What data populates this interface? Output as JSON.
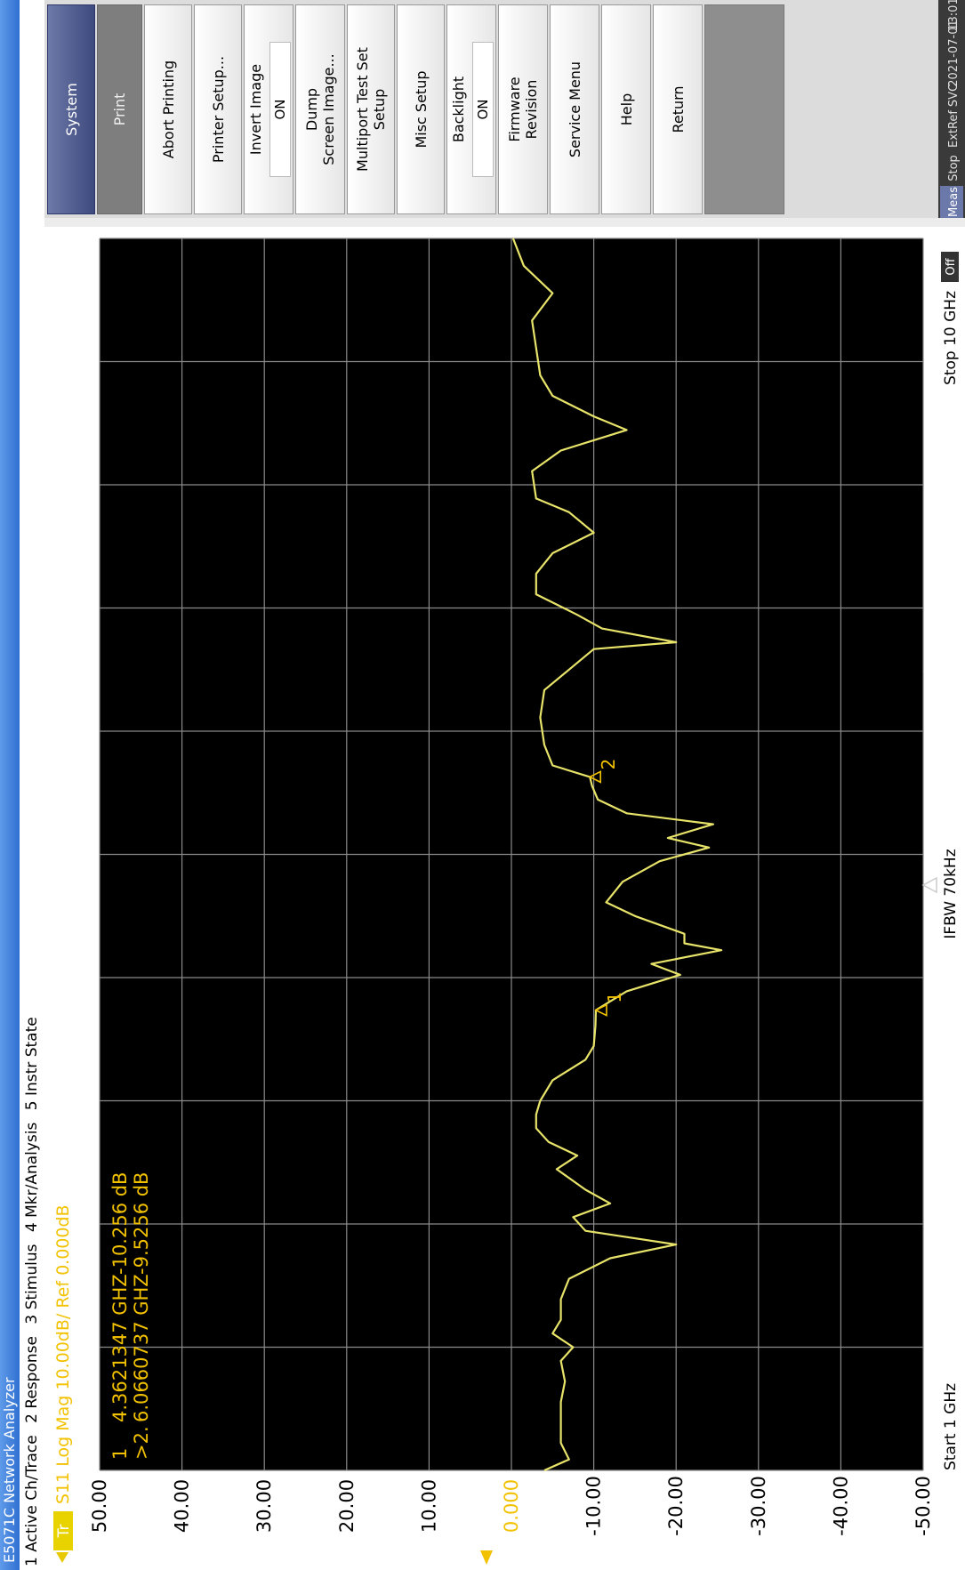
{
  "window": {
    "title": "E5071C Network Analyzer"
  },
  "menu": {
    "items": [
      "1 Active Ch/Trace",
      "2 Response",
      "3 Stimulus",
      "4 Mkr/Analysis",
      "5 Instr State"
    ]
  },
  "trace_header": {
    "tag": "Tr",
    "text": "S11 Log Mag 10.00dB/ Ref 0.000dB"
  },
  "markers_table": [
    {
      "label": "1",
      "freq": "4.3621347 GHZ",
      "value": "-10.256 dB"
    },
    {
      "label": ">2.",
      "freq": "6.0660737 GHZ",
      "value": "-9.5256 dB"
    }
  ],
  "footer": {
    "start": "Start 1 GHz",
    "ifbw": "IFBW 70kHz",
    "stop": "Stop 10 GHz",
    "off_badge": "Off"
  },
  "softkeys": {
    "system": "System",
    "print": "Print",
    "abort_printing": "Abort Printing",
    "printer_setup": "Printer Setup...",
    "invert_image": {
      "label": "Invert Image",
      "value": "ON"
    },
    "dump_screen": {
      "line1": "Dump",
      "line2": "Screen Image..."
    },
    "multiport": {
      "line1": "Multiport Test Set",
      "line2": "Setup"
    },
    "misc_setup": "Misc Setup",
    "backlight": {
      "label": "Backlight",
      "value": "ON"
    },
    "firmware": {
      "line1": "Firmware",
      "line2": "Revision"
    },
    "service_menu": "Service Menu",
    "help": "Help",
    "return": "Return"
  },
  "status": {
    "items": [
      "Meas",
      "Stop",
      "ExtRef",
      "SVC",
      "2021-07-01",
      "13:01"
    ]
  },
  "colors": {
    "trace": "#e8e46a",
    "text_yellow": "#f2c200",
    "grid": "#8a8a8a",
    "background": "#000000",
    "system_key": "#4f5a8c"
  },
  "chart_data": {
    "type": "line",
    "title": "S11 Log Mag 10.00dB/ Ref 0.000dB",
    "xlabel": "",
    "ylabel": "",
    "x_unit": "GHz",
    "xlim": [
      1,
      10
    ],
    "ylim": [
      -50,
      50
    ],
    "y_ticks": [
      "50.00",
      "40.00",
      "30.00",
      "20.00",
      "10.00",
      "0.000",
      "-10.00",
      "-20.00",
      "-30.00",
      "-40.00",
      "-50.00"
    ],
    "grid": true,
    "series": [
      {
        "x": [
          1.0,
          1.08,
          1.2,
          1.35,
          1.5,
          1.65,
          1.8,
          1.9,
          2.0,
          2.1,
          2.25,
          2.4,
          2.55,
          2.65,
          2.75,
          2.85,
          2.95,
          3.05,
          3.2,
          3.3,
          3.4,
          3.5,
          3.6,
          3.7,
          3.85,
          4.0,
          4.1,
          4.25,
          4.362,
          4.5,
          4.62,
          4.7,
          4.8,
          4.85,
          4.92,
          5.05,
          5.15,
          5.3,
          5.45,
          5.55,
          5.62,
          5.72,
          5.8,
          5.9,
          6.0,
          6.066,
          6.15,
          6.3,
          6.5,
          6.7,
          6.85,
          7.0,
          7.05,
          7.15,
          7.25,
          7.4,
          7.55,
          7.7,
          7.85,
          8.0,
          8.1,
          8.3,
          8.45,
          8.6,
          8.7,
          8.85,
          9.0,
          9.2,
          9.4,
          9.6,
          9.8,
          10.0
        ],
        "y": [
          -4,
          -7,
          -6,
          -6,
          -6,
          -6.5,
          -6,
          -7.5,
          -5,
          -6,
          -6,
          -7,
          -12,
          -20,
          -9,
          -7.5,
          -12,
          -9,
          -5.5,
          -8,
          -4.5,
          -3,
          -3,
          -3.5,
          -5,
          -9,
          -10,
          -10.2,
          -10.256,
          -14,
          -20.5,
          -17,
          -25.5,
          -21,
          -21,
          -15,
          -11.5,
          -13.5,
          -18,
          -24,
          -19,
          -24.5,
          -14,
          -10.5,
          -9.8,
          -9.5256,
          -5,
          -4,
          -3.5,
          -4,
          -7,
          -10,
          -20,
          -11,
          -8,
          -3,
          -3,
          -5,
          -10,
          -7,
          -3,
          -2.5,
          -6,
          -14,
          -10,
          -5,
          -3.5,
          -3,
          -2.5,
          -5,
          -1.5,
          -0.2
        ]
      }
    ],
    "markers": [
      {
        "label": "1",
        "x": 4.362,
        "y": -10.256
      },
      {
        "label": "2",
        "x": 6.066,
        "y": -9.5256
      }
    ]
  }
}
